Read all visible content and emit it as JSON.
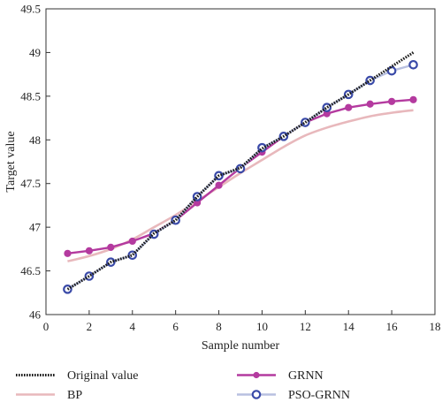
{
  "chart_data": {
    "type": "line",
    "title": "",
    "xlabel": "Sample number",
    "ylabel": "Target value",
    "xlim": [
      0,
      18
    ],
    "ylim": [
      46,
      49.5
    ],
    "x_ticks": [
      0,
      2,
      4,
      6,
      8,
      10,
      12,
      14,
      16,
      18
    ],
    "x_tick_labels": [
      "0",
      "2",
      "4",
      "6",
      "8",
      "10",
      "12",
      "14",
      "16",
      "18"
    ],
    "y_ticks": [
      46,
      46.5,
      47,
      47.5,
      48,
      48.5,
      49,
      49.5
    ],
    "y_tick_labels": [
      "46",
      "46.5",
      "47",
      "47.5",
      "48",
      "48.5",
      "49",
      "49.5"
    ],
    "grid": false,
    "legend_placement": "bottom",
    "x": [
      1,
      2,
      3,
      4,
      5,
      6,
      7,
      8,
      9,
      10,
      11,
      12,
      13,
      14,
      15,
      16,
      17
    ],
    "series": [
      {
        "name": "Original value",
        "style": "dotted-line",
        "color": "#1a1a1a",
        "values": [
          46.29,
          46.44,
          46.6,
          46.68,
          46.93,
          47.08,
          47.35,
          47.59,
          47.68,
          47.9,
          48.04,
          48.2,
          48.37,
          48.52,
          48.68,
          48.84,
          49.0
        ]
      },
      {
        "name": "GRNN",
        "style": "line-filled-circle",
        "color": "#b43a9f",
        "values": [
          46.7,
          46.73,
          46.77,
          46.84,
          46.93,
          47.08,
          47.28,
          47.48,
          47.68,
          47.86,
          48.04,
          48.2,
          48.3,
          48.37,
          48.41,
          48.44,
          48.46
        ]
      },
      {
        "name": "BP",
        "style": "line",
        "color": "#e8b8bc",
        "values": [
          46.61,
          46.67,
          46.75,
          46.86,
          47.0,
          47.14,
          47.3,
          47.46,
          47.62,
          47.77,
          47.92,
          48.05,
          48.14,
          48.21,
          48.27,
          48.31,
          48.34
        ]
      },
      {
        "name": "PSO-GRNN",
        "style": "line-open-circle",
        "color": "#3a4aa8",
        "line_color": "#b8c0e0",
        "values": [
          46.29,
          46.44,
          46.6,
          46.68,
          46.92,
          47.08,
          47.35,
          47.59,
          47.67,
          47.91,
          48.04,
          48.2,
          48.37,
          48.52,
          48.68,
          48.79,
          48.86
        ]
      }
    ]
  }
}
